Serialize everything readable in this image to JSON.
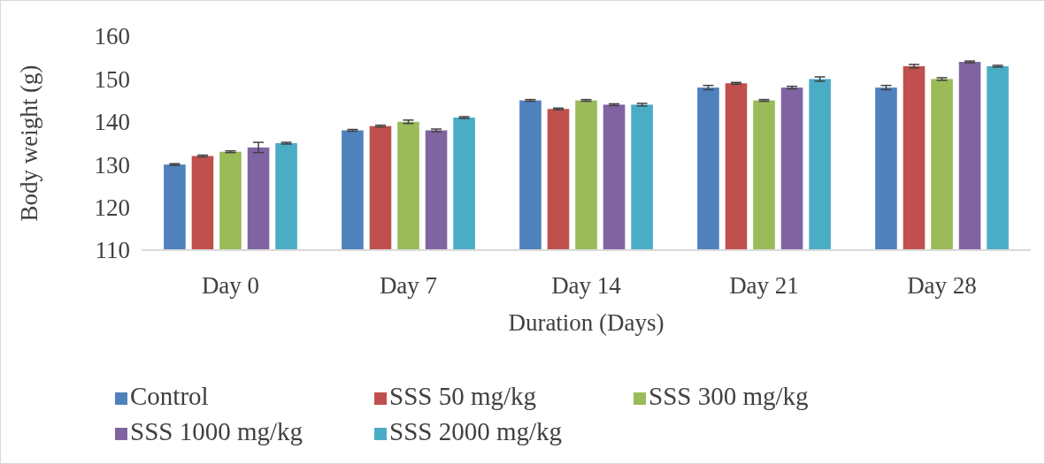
{
  "chart_data": {
    "type": "bar",
    "xlabel": "Duration (Days)",
    "ylabel": "Body weight (g)",
    "categories": [
      "Day 0",
      "Day 7",
      "Day 14",
      "Day 21",
      "Day 28"
    ],
    "series": [
      {
        "name": "Control",
        "color": "#4f81bd",
        "values": [
          130,
          138,
          145,
          148,
          148
        ],
        "errors": [
          0.2,
          0.2,
          0.2,
          0.5,
          0.5
        ]
      },
      {
        "name": "SSS 50 mg/kg",
        "color": "#c0504d",
        "values": [
          132,
          139,
          143,
          149,
          153
        ],
        "errors": [
          0.2,
          0.2,
          0.2,
          0.2,
          0.4
        ]
      },
      {
        "name": "SSS 300 mg/kg",
        "color": "#9bbb59",
        "values": [
          133,
          140,
          145,
          145,
          150
        ],
        "errors": [
          0.2,
          0.4,
          0.2,
          0.2,
          0.3
        ]
      },
      {
        "name": "SSS 1000 mg/kg",
        "color": "#8064a2",
        "values": [
          134,
          138,
          144,
          148,
          154
        ],
        "errors": [
          1.2,
          0.3,
          0.2,
          0.3,
          0.2
        ]
      },
      {
        "name": "SSS 2000 mg/kg",
        "color": "#4bacc6",
        "values": [
          135,
          141,
          144,
          150,
          153
        ],
        "errors": [
          0.2,
          0.2,
          0.3,
          0.5,
          0.2
        ]
      }
    ],
    "ylim": [
      110,
      160
    ],
    "yticks": [
      110,
      120,
      130,
      140,
      150,
      160
    ],
    "grid": false,
    "legend": "bottom"
  }
}
